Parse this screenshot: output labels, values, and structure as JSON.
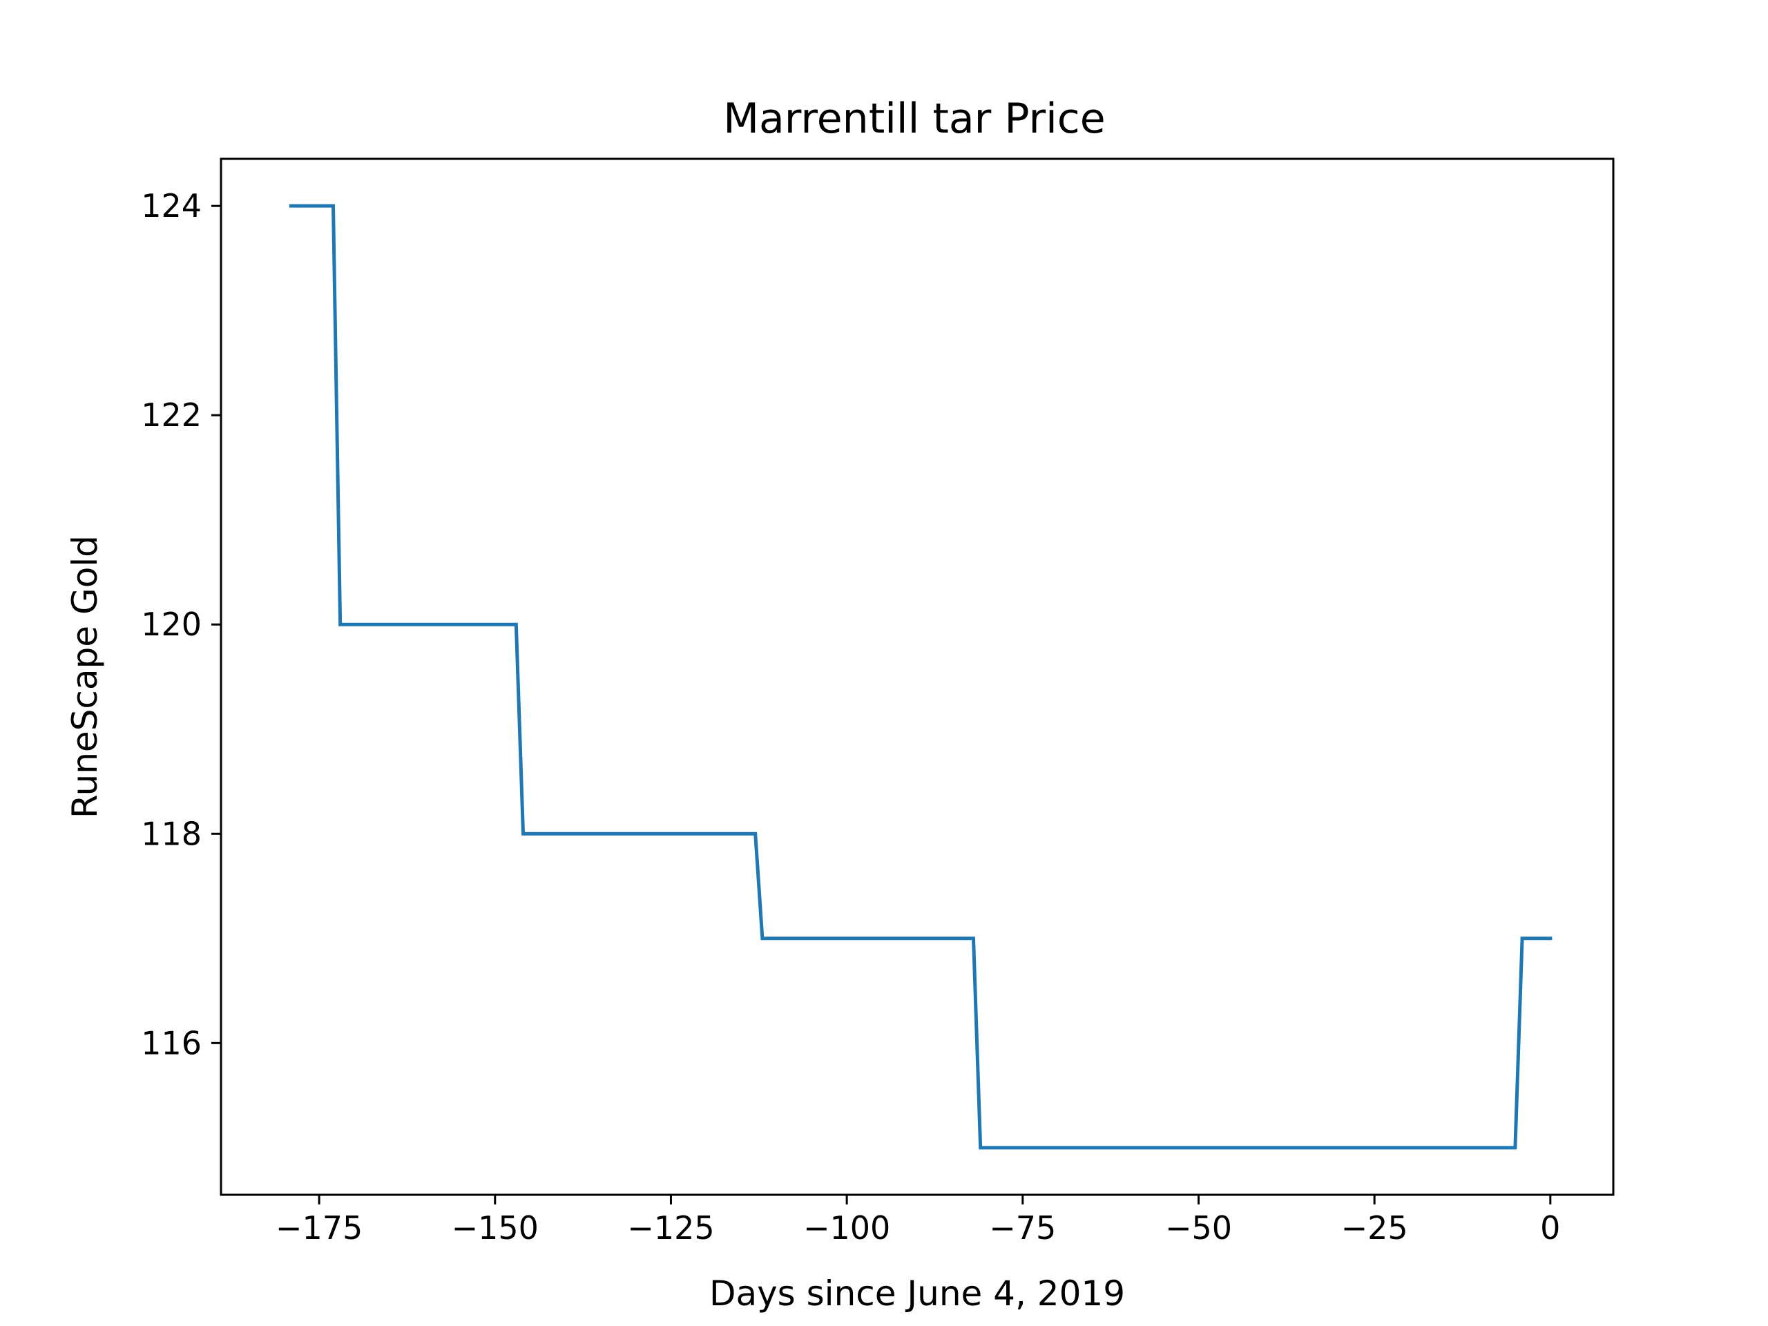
{
  "chart_data": {
    "type": "line",
    "title": "Marrentill tar Price",
    "xlabel": "Days since June 4, 2019",
    "ylabel": "RuneScape Gold",
    "xlim": [
      -188.95,
      8.95
    ],
    "ylim": [
      114.55,
      124.45
    ],
    "xticks": [
      -175,
      -150,
      -125,
      -100,
      -75,
      -50,
      -25,
      0
    ],
    "xtick_labels": [
      "−175",
      "−150",
      "−125",
      "−100",
      "−75",
      "−50",
      "−25",
      "0"
    ],
    "yticks": [
      116,
      118,
      120,
      122,
      124
    ],
    "ytick_labels": [
      "116",
      "118",
      "120",
      "122",
      "124"
    ],
    "grid": false,
    "legend": "none",
    "series": [
      {
        "color": "#1f77b4",
        "x": [
          -179,
          -173,
          -172,
          -147,
          -146,
          -113,
          -112,
          -82,
          -81,
          -5,
          -4,
          0
        ],
        "y": [
          124,
          124,
          120,
          120,
          118,
          118,
          117,
          117,
          115,
          115,
          117,
          117
        ]
      }
    ]
  }
}
